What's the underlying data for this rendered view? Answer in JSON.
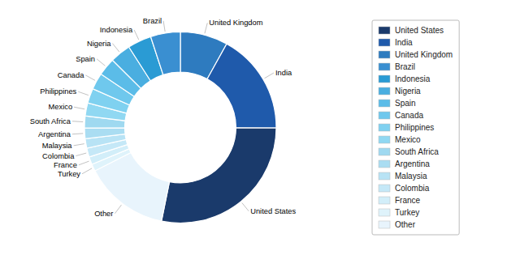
{
  "chart_data": {
    "type": "donut",
    "categories": [
      "United Kingdom",
      "India",
      "United States",
      "Other",
      "Turkey",
      "France",
      "Colombia",
      "Malaysia",
      "Argentina",
      "South Africa",
      "Mexico",
      "Philippines",
      "Canada",
      "Spain",
      "Nigeria",
      "Indonesia",
      "Brazil"
    ],
    "values": [
      8,
      17,
      28,
      14.3,
      1.2,
      1.3,
      1.5,
      1.6,
      1.8,
      2.0,
      2.2,
      2.5,
      2.8,
      3.0,
      3.5,
      4.0,
      5.0
    ],
    "colors": [
      "#2e7bbf",
      "#1f5aab",
      "#1a3a6b",
      "#e8f4fc",
      "#dff3fb",
      "#d2eef9",
      "#c5e8f7",
      "#b8e3f5",
      "#aaddf2",
      "#9fd9f0",
      "#90d8f2",
      "#7fd1f0",
      "#6fc8ed",
      "#5bbce8",
      "#4aaee0",
      "#2a9bd4",
      "#3a8fd1"
    ],
    "legend": "right",
    "legend_labels": [
      "United States",
      "India",
      "United Kingdom",
      "Brazil",
      "Indonesia",
      "Nigeria",
      "Spain",
      "Canada",
      "Philippines",
      "Mexico",
      "South Africa",
      "Argentina",
      "Malaysia",
      "Colombia",
      "France",
      "Turkey",
      "Other"
    ],
    "legend_colors": [
      "#1a3a6b",
      "#1f5aab",
      "#2e7bbf",
      "#3a8fd1",
      "#2a9bd4",
      "#4aaee0",
      "#5bbce8",
      "#6fc8ed",
      "#7fd1f0",
      "#90d8f2",
      "#9fd9f0",
      "#aaddf2",
      "#b8e3f5",
      "#c5e8f7",
      "#d2eef9",
      "#dff3fb",
      "#e8f4fc"
    ]
  }
}
